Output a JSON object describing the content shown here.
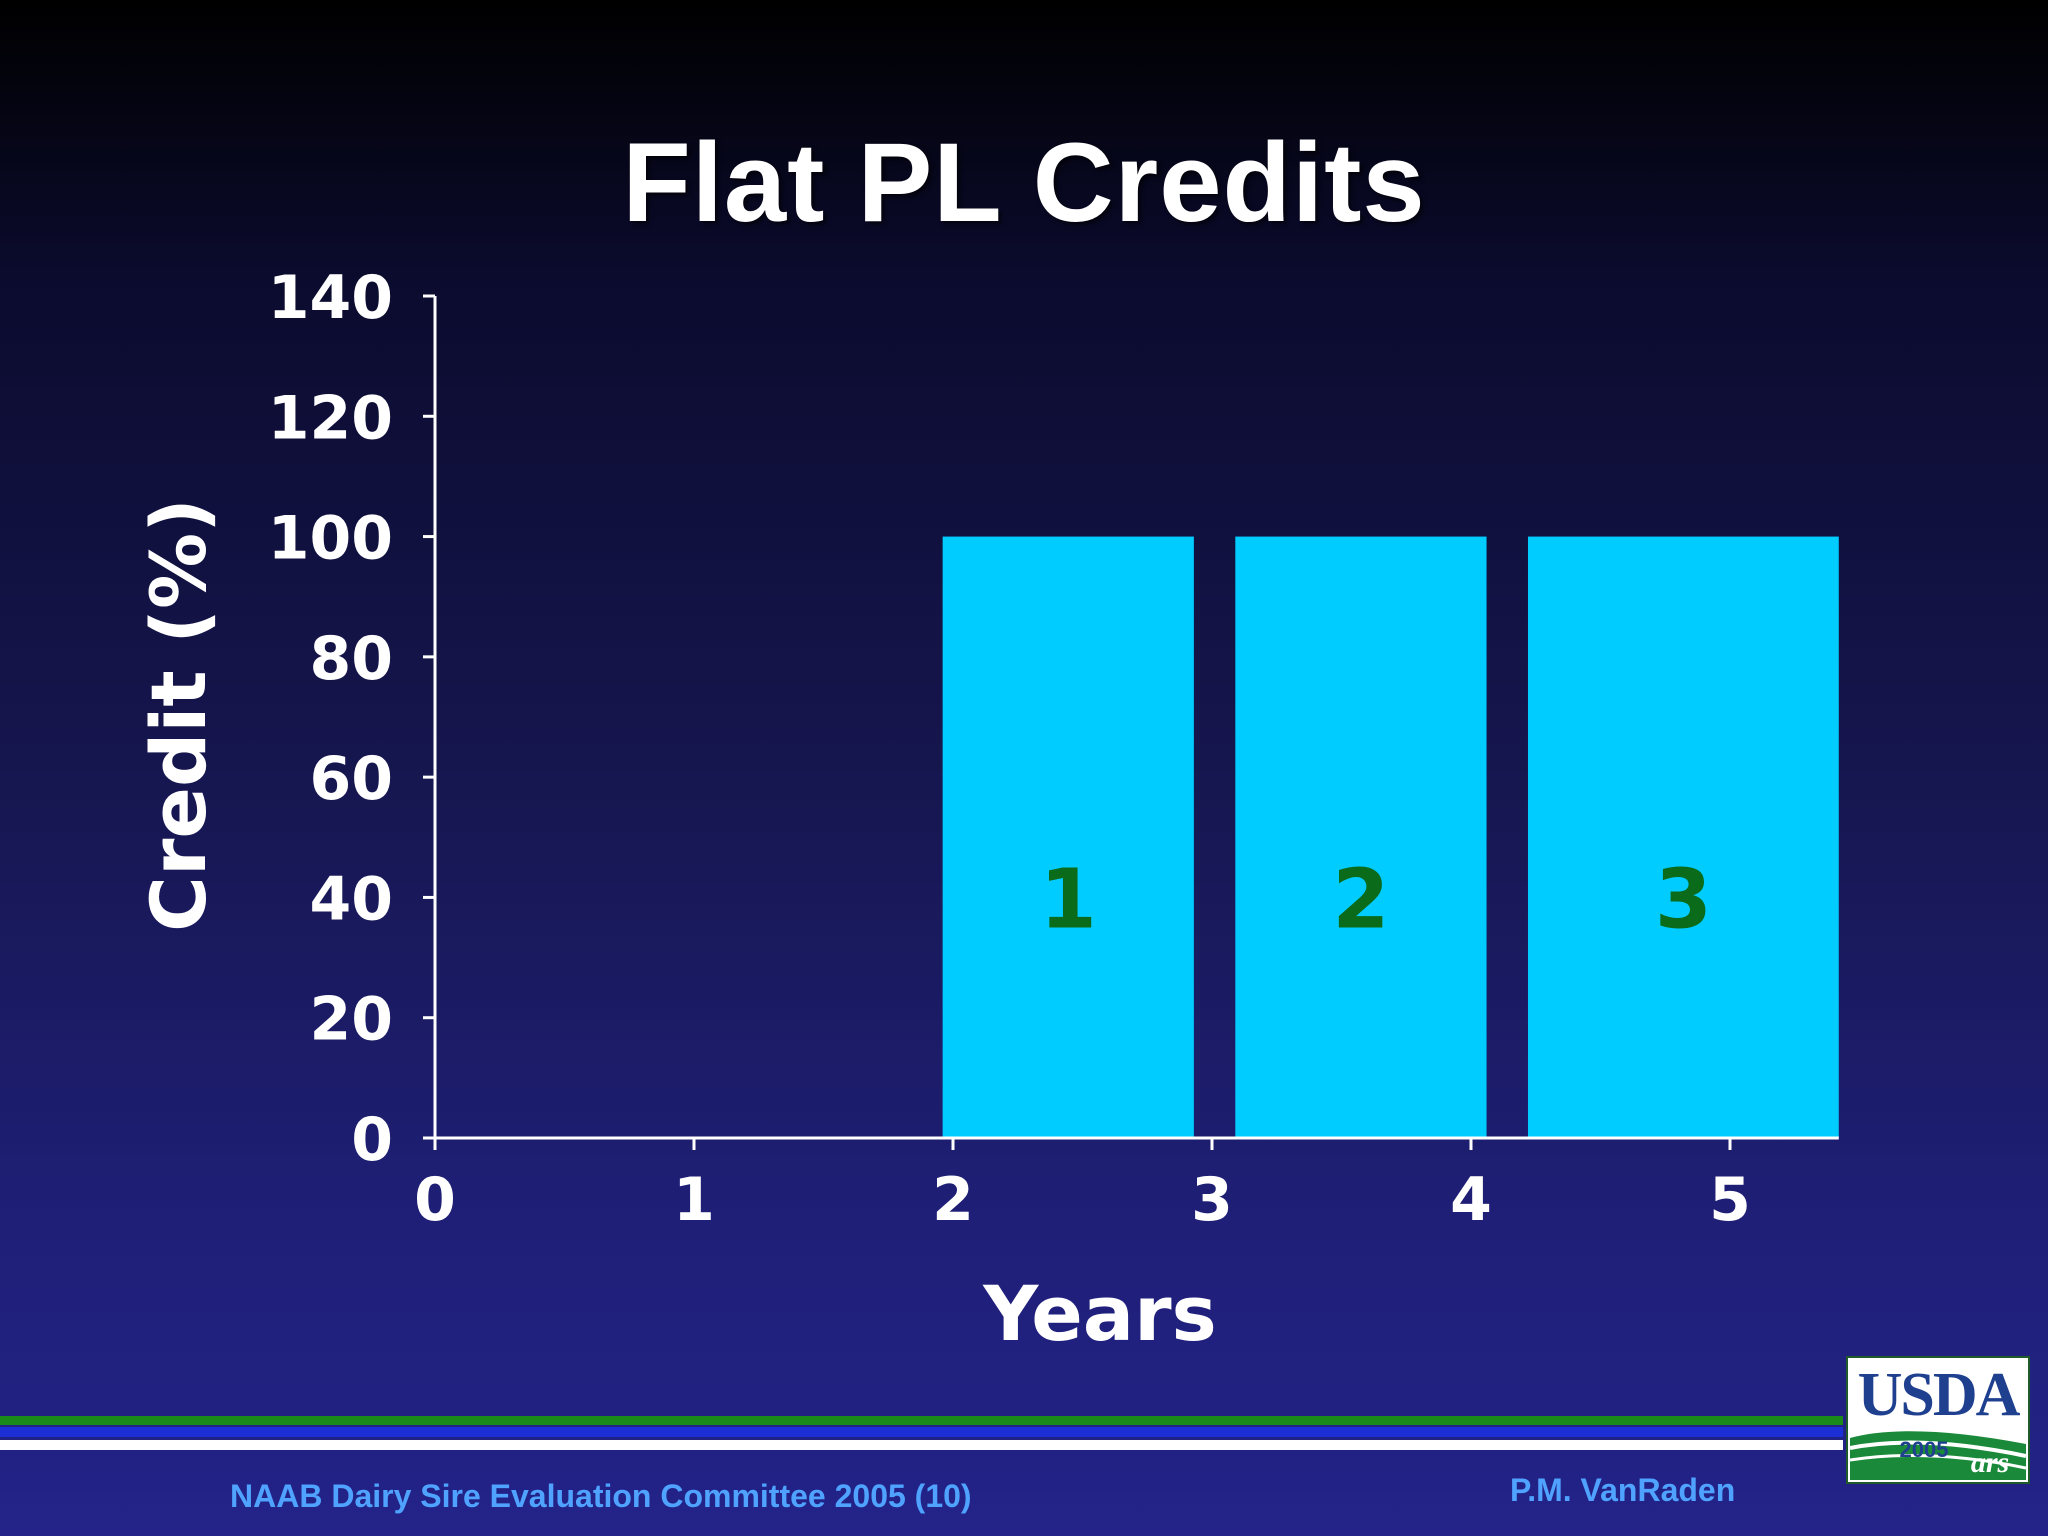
{
  "slide": {
    "title": "Flat PL Credits"
  },
  "footer": {
    "left_text": "NAAB Dairy Sire Evaluation Committee 2005 (10)",
    "right_text": "P.M. VanRaden",
    "logo_text": "USDA",
    "logo_year": "2005",
    "line_colors": [
      "#1a8a1a",
      "#1c2fd6",
      "#ffffff"
    ]
  },
  "chart_data": {
    "type": "bar",
    "title": "Flat PL Credits",
    "xlabel": "Years",
    "ylabel": "Credit (%)",
    "xlim": [
      0,
      5
    ],
    "ylim": [
      0,
      140
    ],
    "x_ticks": [
      "0",
      "1",
      "2",
      "3",
      "4",
      "5"
    ],
    "y_ticks": [
      "0",
      "20",
      "40",
      "60",
      "80",
      "100",
      "120",
      "140"
    ],
    "grid": false,
    "legend": "none",
    "bar_color": "#00ccff",
    "bar_label_color": "#0a6b1a",
    "bars": [
      {
        "label": "1",
        "x_start": 1.96,
        "x_end": 2.93,
        "value": 100
      },
      {
        "label": "2",
        "x_start": 3.09,
        "x_end": 4.06,
        "value": 100
      },
      {
        "label": "3",
        "x_start": 4.22,
        "x_end": 5.42,
        "value": 100
      }
    ]
  }
}
